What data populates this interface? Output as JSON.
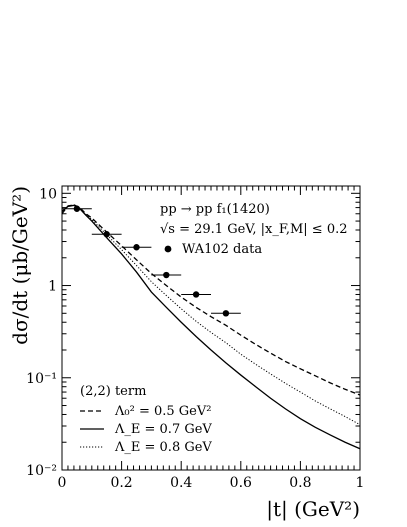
{
  "chart_data": {
    "type": "line",
    "title": "",
    "xlabel": "|t| (GeV²)",
    "ylabel": "dσ/dt (μb/GeV²)",
    "xlim": [
      0,
      1
    ],
    "ylim": [
      0.01,
      12
    ],
    "yscale": "log",
    "x_ticks": [
      0,
      0.2,
      0.4,
      0.6,
      0.8,
      1
    ],
    "x_tick_labels": [
      "0",
      "0.2",
      "0.4",
      "0.6",
      "0.8",
      "1"
    ],
    "y_ticks": [
      0.01,
      0.1,
      1,
      10
    ],
    "y_tick_labels": [
      "10⁻²",
      "10⁻¹",
      "1",
      "10"
    ],
    "grid": false,
    "annotations": [
      "pp → pp f₁(1420)",
      "√s = 29.1 GeV,  |x_F,M| ≤ 0.2"
    ],
    "legend_top": {
      "position": "top-right",
      "entries": [
        "WA102 data"
      ]
    },
    "legend_bottom": {
      "position": "bottom-left",
      "header": "(2,2) term",
      "entries": [
        "Λ₀² = 0.5 GeV²",
        "Λ_E = 0.7 GeV",
        "Λ_E = 0.8 GeV"
      ]
    },
    "data_points": [
      {
        "x": 0.05,
        "y": 6.8,
        "xerr": 0.05
      },
      {
        "x": 0.15,
        "y": 3.6,
        "xerr": 0.05
      },
      {
        "x": 0.25,
        "y": 2.6,
        "xerr": 0.05
      },
      {
        "x": 0.35,
        "y": 1.3,
        "xerr": 0.05
      },
      {
        "x": 0.45,
        "y": 0.8,
        "xerr": 0.05
      },
      {
        "x": 0.55,
        "y": 0.5,
        "xerr": 0.05
      }
    ],
    "series": [
      {
        "style": "dashed",
        "x": [
          0,
          0.02,
          0.04,
          0.06,
          0.08,
          0.1,
          0.15,
          0.2,
          0.25,
          0.3,
          0.35,
          0.4,
          0.45,
          0.5,
          0.55,
          0.6,
          0.65,
          0.7,
          0.75,
          0.8,
          0.85,
          0.9,
          0.95,
          1.0
        ],
        "y": [
          6.0,
          7.3,
          7.5,
          7.0,
          6.0,
          5.4,
          3.8,
          2.7,
          1.9,
          1.35,
          1.0,
          0.75,
          0.58,
          0.46,
          0.37,
          0.29,
          0.23,
          0.185,
          0.15,
          0.125,
          0.105,
          0.088,
          0.075,
          0.065
        ]
      },
      {
        "style": "solid",
        "x": [
          0,
          0.02,
          0.04,
          0.06,
          0.08,
          0.1,
          0.15,
          0.2,
          0.25,
          0.3,
          0.35,
          0.4,
          0.45,
          0.5,
          0.55,
          0.6,
          0.65,
          0.7,
          0.75,
          0.8,
          0.85,
          0.9,
          0.95,
          1.0
        ],
        "y": [
          6.4,
          7.2,
          7.4,
          6.8,
          5.8,
          5.0,
          3.3,
          2.2,
          1.4,
          0.85,
          0.58,
          0.4,
          0.28,
          0.2,
          0.145,
          0.107,
          0.08,
          0.06,
          0.046,
          0.036,
          0.029,
          0.024,
          0.02,
          0.017
        ]
      },
      {
        "style": "dotted",
        "x": [
          0,
          0.02,
          0.04,
          0.06,
          0.08,
          0.1,
          0.15,
          0.2,
          0.25,
          0.3,
          0.35,
          0.4,
          0.45,
          0.5,
          0.55,
          0.6,
          0.65,
          0.7,
          0.75,
          0.8,
          0.85,
          0.9,
          0.95,
          1.0
        ],
        "y": [
          6.2,
          7.3,
          7.5,
          6.9,
          5.9,
          5.2,
          3.55,
          2.45,
          1.65,
          1.1,
          0.78,
          0.56,
          0.41,
          0.31,
          0.24,
          0.18,
          0.14,
          0.11,
          0.087,
          0.07,
          0.056,
          0.046,
          0.038,
          0.031
        ]
      }
    ]
  }
}
